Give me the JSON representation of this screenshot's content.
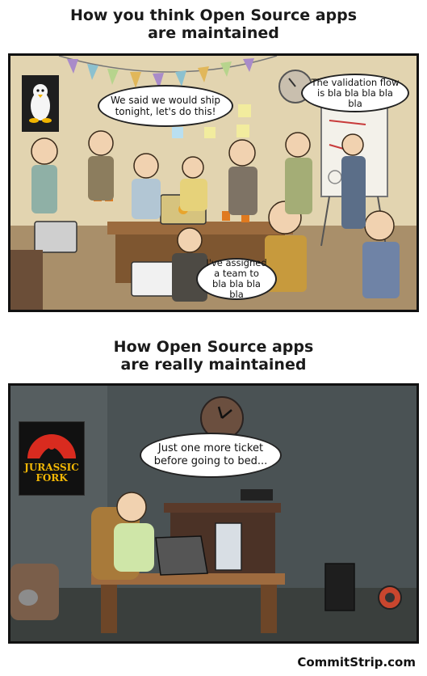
{
  "panel1": {
    "title_line1": "How you think Open Source apps",
    "title_line2": "are maintained",
    "bubbles": [
      "We said we would ship tonight, let's do this!",
      "The validation flow is bla bla bla bla bla",
      "I've assigned a team to bla bla bla bla"
    ]
  },
  "panel2": {
    "title_line1": "How Open Source apps",
    "title_line2": "are really maintained",
    "poster_text_1": "JURASSIC",
    "poster_text_2": "FORK",
    "bubble": "Just one more ticket before going to bed..."
  },
  "credit": "CommitStrip.com"
}
